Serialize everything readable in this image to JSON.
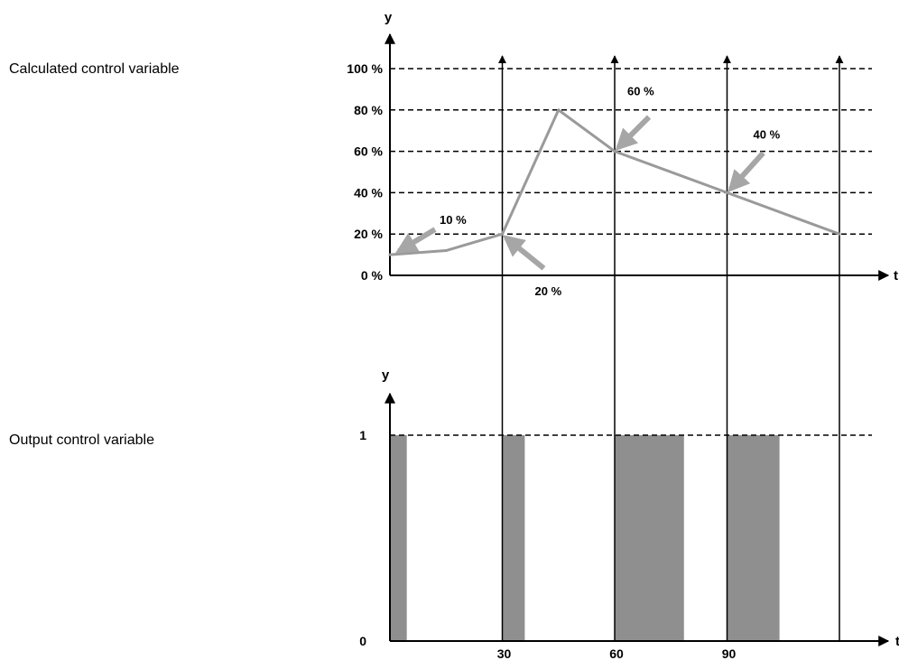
{
  "labels": {
    "top": "Calculated control variable",
    "bottom": "Output control variable"
  },
  "colors": {
    "curve": "#9a9a9a",
    "pulse": "#8f8f8f",
    "arrow": "#a6a6a6",
    "axis": "#000000"
  },
  "chart_data": [
    {
      "type": "line",
      "ylabel": "y",
      "xlabel": "t",
      "ylim": [
        0,
        100
      ],
      "xlim": [
        0,
        120
      ],
      "y_ticks": [
        "0 %",
        "20 %",
        "40 %",
        "60 %",
        "80 %",
        "100 %"
      ],
      "y_tick_values": [
        0,
        20,
        40,
        60,
        80,
        100
      ],
      "grid": "dashed horizontal",
      "vertical_markers": [
        30,
        60,
        90,
        120
      ],
      "x": [
        0,
        15,
        30,
        45,
        60,
        90,
        120
      ],
      "y": [
        10,
        12,
        20,
        80,
        60,
        40,
        20
      ],
      "annotations": [
        {
          "text": "10 %",
          "x": 0,
          "y": 10
        },
        {
          "text": "20 %",
          "x": 30,
          "y": 20
        },
        {
          "text": "60 %",
          "x": 60,
          "y": 60
        },
        {
          "text": "40 %",
          "x": 90,
          "y": 40
        }
      ]
    },
    {
      "type": "area",
      "ylabel": "y",
      "xlabel": "t",
      "ylim": [
        0,
        1
      ],
      "xlim": [
        0,
        120
      ],
      "y_ticks": [
        "0",
        "1"
      ],
      "y_tick_values": [
        0,
        1
      ],
      "x_ticks": [
        "30",
        "60",
        "90"
      ],
      "x_tick_values": [
        30,
        60,
        90
      ],
      "pulses": [
        {
          "start": 0,
          "end": 4.5
        },
        {
          "start": 30,
          "end": 36
        },
        {
          "start": 60,
          "end": 78.5
        },
        {
          "start": 90,
          "end": 104
        }
      ]
    }
  ]
}
